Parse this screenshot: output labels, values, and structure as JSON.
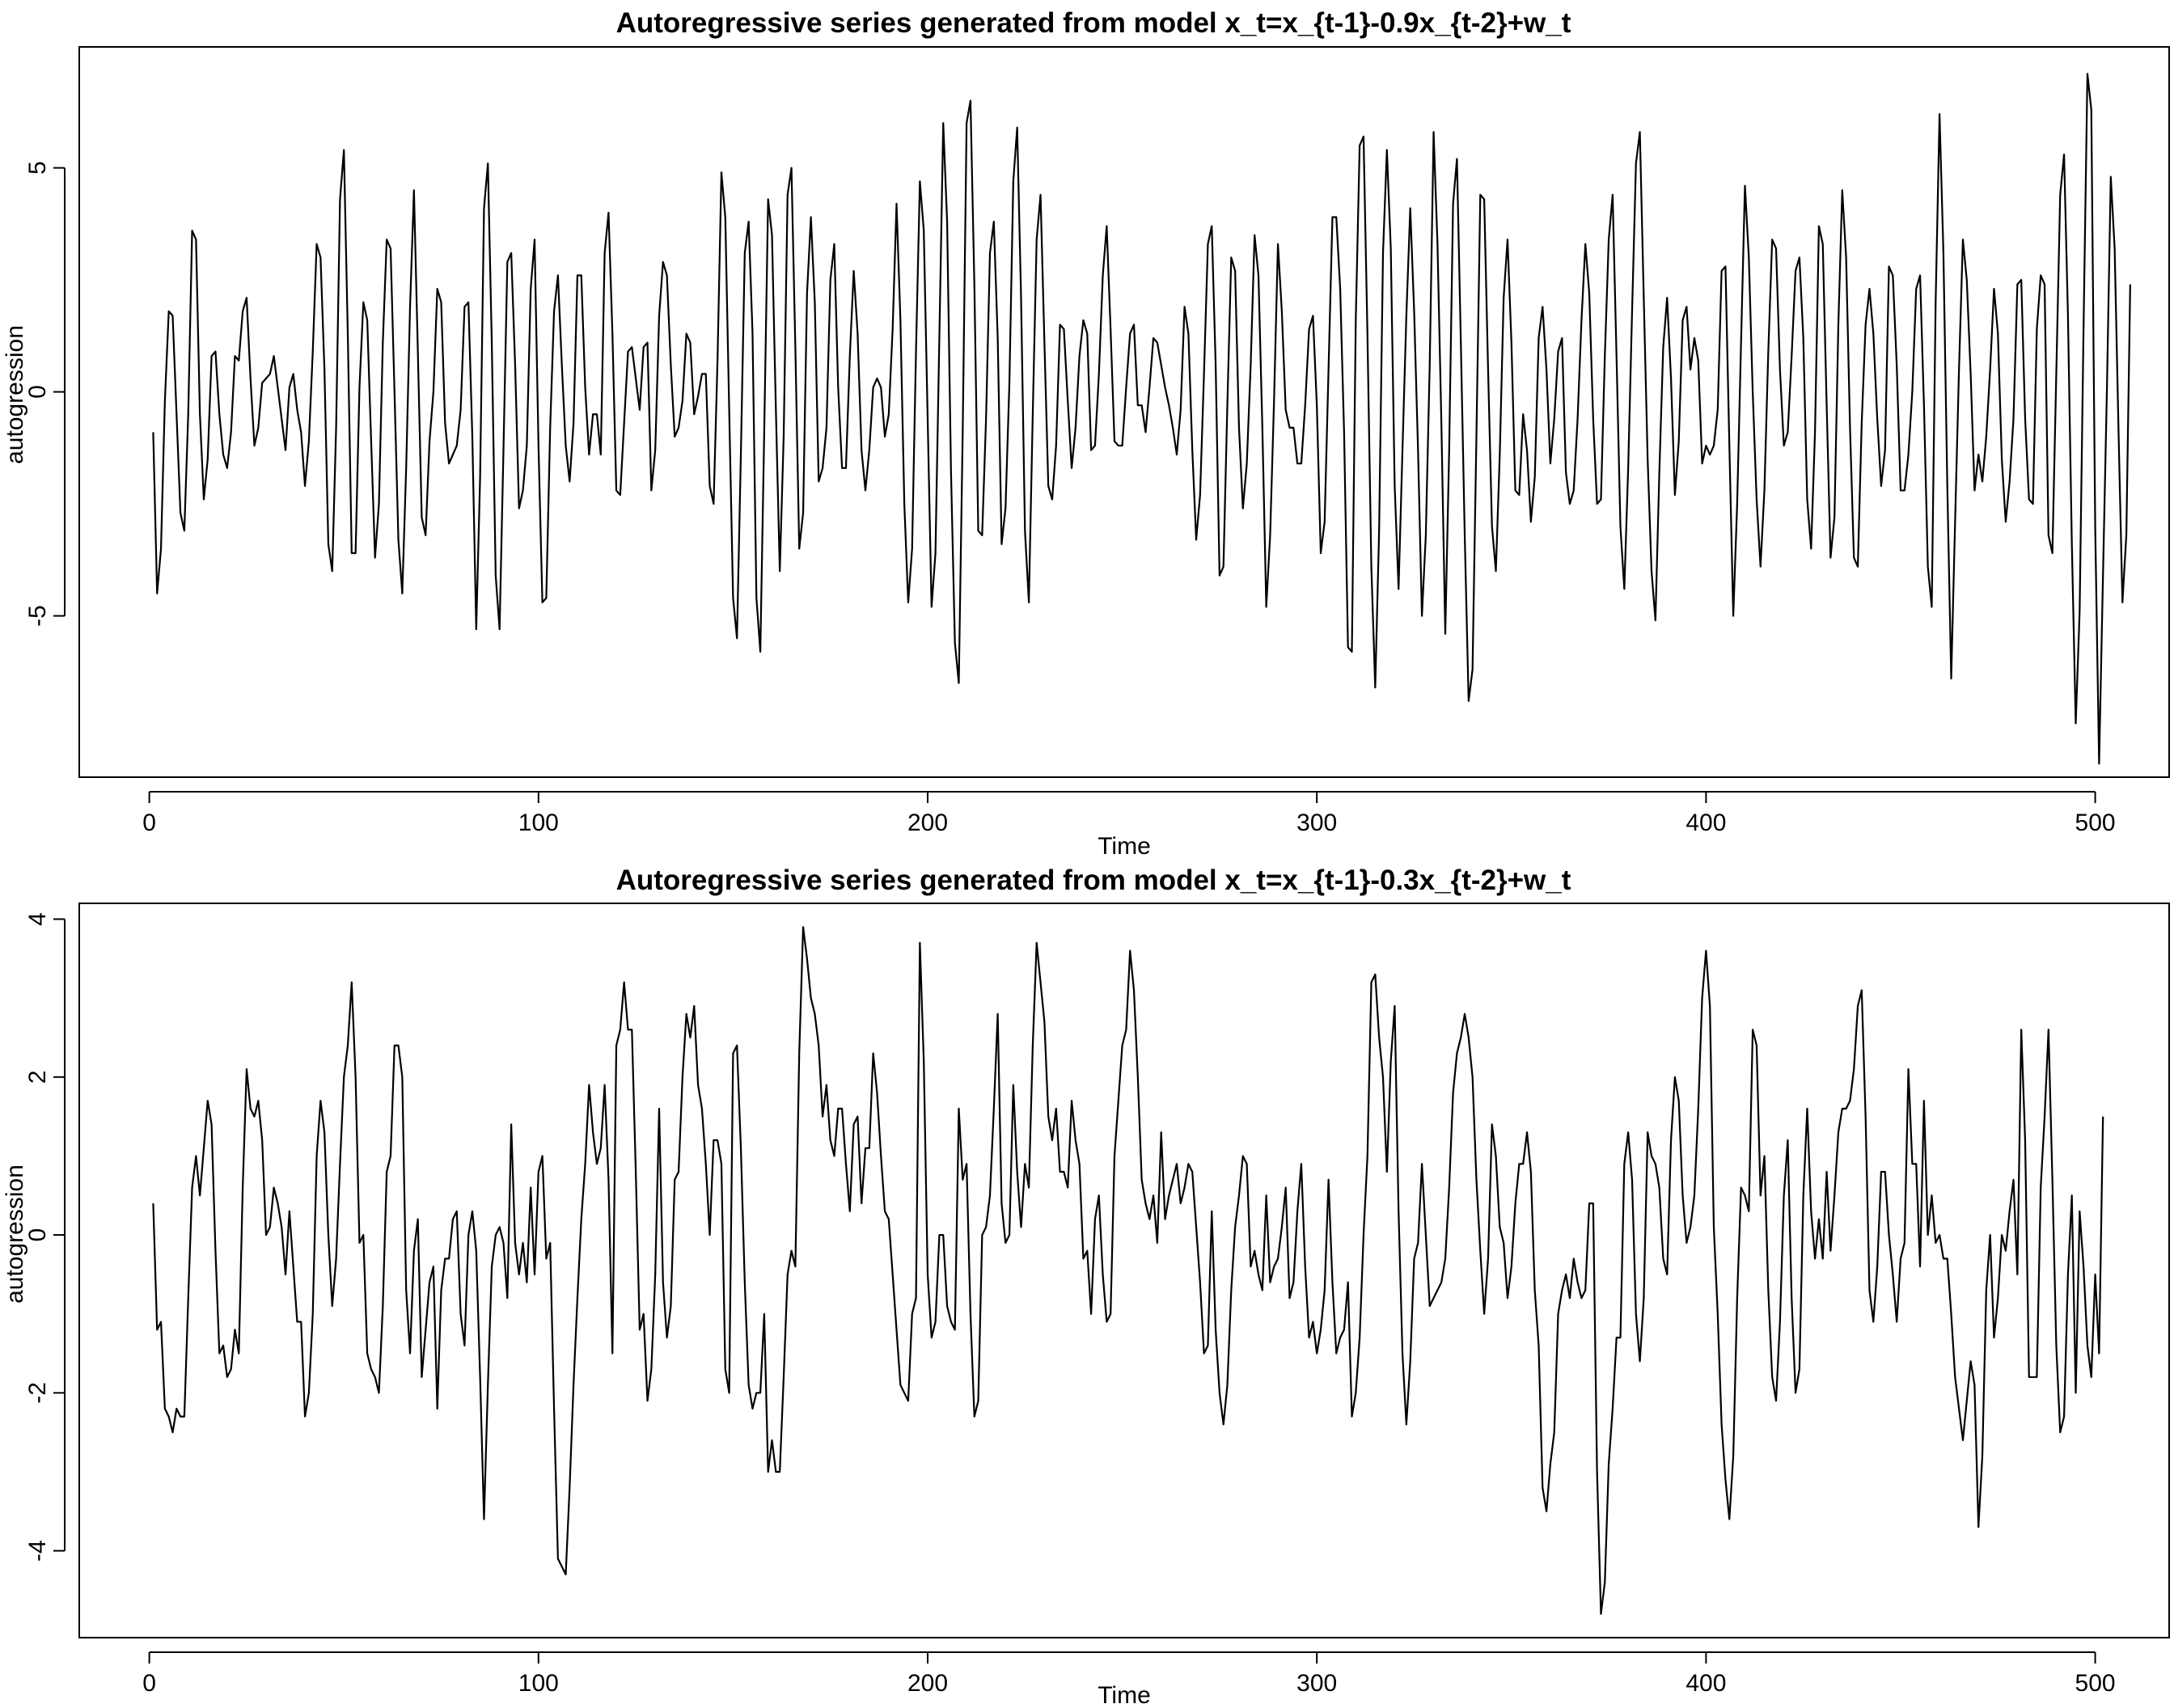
{
  "chart_data": [
    {
      "type": "line",
      "title": "Autoregressive series generated from model x_t=x_{t-1}-0.9x_{t-2}+w_t",
      "xlabel": "Time",
      "ylabel": "autogression",
      "xlim": [
        -18,
        519
      ],
      "ylim": [
        -8.6,
        7.7
      ],
      "xticks": [
        0,
        100,
        200,
        300,
        400,
        500
      ],
      "yticks": [
        -5,
        0,
        5
      ],
      "xtick_labels": [
        "0",
        "100",
        "200",
        "300",
        "400",
        "500"
      ],
      "ytick_labels": [
        "-5",
        "0",
        "5"
      ],
      "grid": false,
      "x_start": 1,
      "values": [
        -0.9,
        -4.5,
        -3.5,
        -0.2,
        1.8,
        1.7,
        -0.5,
        -2.7,
        -3.1,
        -0.5,
        3.6,
        3.4,
        -0.5,
        -2.4,
        -1.5,
        0.8,
        0.9,
        -0.5,
        -1.4,
        -1.7,
        -0.9,
        0.8,
        0.7,
        1.8,
        2.1,
        0.3,
        -1.2,
        -0.8,
        0.2,
        0.3,
        0.4,
        0.8,
        0.1,
        -0.6,
        -1.3,
        0.1,
        0.4,
        -0.4,
        -0.9,
        -2.1,
        -1.1,
        0.9,
        3.3,
        3.0,
        0.5,
        -3.4,
        -4.0,
        -0.8,
        4.3,
        5.4,
        1.3,
        -3.6,
        -3.6,
        0.1,
        2.0,
        1.6,
        -1.1,
        -3.7,
        -2.5,
        1.1,
        3.4,
        3.2,
        0.0,
        -3.3,
        -4.5,
        -1.7,
        1.9,
        4.5,
        0.9,
        -2.8,
        -3.2,
        -1.1,
        0.0,
        2.3,
        2.0,
        -0.7,
        -1.6,
        -1.4,
        -1.2,
        -0.4,
        1.9,
        2.0,
        -1.0,
        -5.3,
        -1.9,
        4.1,
        5.1,
        1.1,
        -4.1,
        -5.3,
        -1.3,
        2.9,
        3.1,
        0.6,
        -2.6,
        -2.2,
        -1.2,
        2.3,
        3.4,
        -1.2,
        -4.7,
        -4.6,
        -0.8,
        1.8,
        2.6,
        0.6,
        -1.2,
        -2.0,
        -0.7,
        2.6,
        2.6,
        0.1,
        -1.4,
        -0.5,
        -0.5,
        -1.4,
        3.1,
        4.0,
        1.3,
        -2.2,
        -2.3,
        -0.7,
        0.9,
        1.0,
        0.3,
        -0.4,
        1.0,
        1.1,
        -2.2,
        -1.3,
        1.7,
        2.9,
        2.6,
        0.6,
        -1.0,
        -0.8,
        -0.2,
        1.3,
        1.1,
        -0.5,
        -0.1,
        0.4,
        0.4,
        -2.1,
        -2.5,
        0.7,
        4.9,
        3.9,
        -0.4,
        -4.6,
        -5.5,
        -1.4,
        3.1,
        3.8,
        1.3,
        -4.6,
        -5.8,
        -0.9,
        4.3,
        3.5,
        -0.4,
        -4.0,
        -1.0,
        4.4,
        5.0,
        1.0,
        -3.5,
        -2.7,
        2.2,
        3.9,
        2.0,
        -2.0,
        -1.7,
        -0.8,
        2.5,
        3.3,
        0.1,
        -1.7,
        -1.7,
        0.8,
        2.7,
        1.3,
        -1.3,
        -2.2,
        -1.3,
        0.1,
        0.3,
        0.1,
        -1.0,
        -0.5,
        1.4,
        4.2,
        1.6,
        -2.5,
        -4.7,
        -3.5,
        0.9,
        4.7,
        3.6,
        -0.6,
        -4.8,
        -3.6,
        1.2,
        6.0,
        3.8,
        -1.8,
        -5.6,
        -6.5,
        -0.9,
        6.0,
        6.5,
        2.4,
        -3.1,
        -3.2,
        -0.6,
        3.1,
        3.8,
        1.2,
        -3.4,
        -2.6,
        0.2,
        4.7,
        5.9,
        2.1,
        -3.1,
        -4.7,
        -0.5,
        3.4,
        4.4,
        1.1,
        -2.1,
        -2.4,
        -1.2,
        1.5,
        1.4,
        -0.2,
        -1.7,
        -0.8,
        0.8,
        1.6,
        1.3,
        -1.3,
        -1.2,
        0.4,
        2.6,
        3.7,
        1.4,
        -1.1,
        -1.2,
        -1.2,
        0.1,
        1.3,
        1.5,
        -0.3,
        -0.3,
        -0.9,
        0.1,
        1.2,
        1.1,
        0.6,
        0.1,
        -0.3,
        -0.8,
        -1.4,
        -0.4,
        1.9,
        1.3,
        -1.3,
        -3.3,
        -2.3,
        0.4,
        3.3,
        3.7,
        0.6,
        -4.1,
        -3.9,
        -0.3,
        3.0,
        2.7,
        -0.8,
        -2.6,
        -1.6,
        0.6,
        3.5,
        2.6,
        -0.8,
        -4.8,
        -3.2,
        -0.2,
        3.3,
        1.8,
        -0.4,
        -0.8,
        -0.8,
        -1.6,
        -1.6,
        -0.3,
        1.4,
        1.7,
        -0.3,
        -3.6,
        -2.9,
        0.5,
        3.9,
        3.9,
        2.3,
        -0.9,
        -5.7,
        -5.8,
        1.6,
        5.5,
        5.7,
        1.3,
        -3.9,
        -6.6,
        -3.1,
        3.1,
        5.4,
        3.2,
        -2.1,
        -4.4,
        -1.3,
        1.7,
        4.1,
        1.8,
        -1.3,
        -5.0,
        -3.2,
        0.6,
        5.8,
        3.3,
        -0.7,
        -5.4,
        -1.3,
        4.2,
        5.2,
        1.1,
        -3.2,
        -6.9,
        -6.2,
        -1.0,
        4.4,
        4.3,
        0.5,
        -3.0,
        -4.0,
        -1.4,
        2.1,
        3.4,
        1.1,
        -2.2,
        -2.3,
        -0.5,
        -1.3,
        -2.9,
        -1.9,
        1.2,
        1.9,
        0.5,
        -1.6,
        -0.6,
        0.9,
        1.2,
        -1.8,
        -2.5,
        -2.2,
        -0.6,
        1.6,
        3.3,
        2.2,
        -0.6,
        -2.5,
        -2.4,
        0.8,
        3.4,
        4.4,
        0.8,
        -3.0,
        -4.4,
        -1.7,
        1.8,
        5.1,
        5.8,
        2.1,
        -1.5,
        -4.0,
        -5.1,
        -1.8,
        1.0,
        2.1,
        0.3,
        -2.3,
        -1.1,
        1.6,
        1.9,
        0.5,
        1.2,
        0.7,
        -1.6,
        -1.2,
        -1.4,
        -1.2,
        -0.4,
        2.7,
        2.8,
        -1.2,
        -5.0,
        -2.5,
        1.1,
        4.6,
        3.0,
        0.0,
        -2.4,
        -3.9,
        -2.2,
        0.9,
        3.4,
        3.2,
        0.5,
        -1.2,
        -0.9,
        0.8,
        2.7,
        3.0,
        1.2,
        -2.4,
        -3.5,
        -0.9,
        3.7,
        3.3,
        -0.3,
        -3.7,
        -2.8,
        1.5,
        4.5,
        3.0,
        -0.8,
        -3.7,
        -3.9,
        -0.7,
        1.5,
        2.3,
        1.3,
        -0.6,
        -2.1,
        -1.3,
        2.8,
        2.6,
        0.6,
        -2.2,
        -2.2,
        -1.4,
        0.0,
        2.3,
        2.6,
        -0.3,
        -3.9,
        -4.8,
        2.0,
        6.2,
        3.1,
        -2.1,
        -6.4,
        -2.9,
        0.5,
        3.4,
        2.5,
        0.4,
        -2.2,
        -1.4,
        -2.0,
        -1.0,
        0.5,
        2.3,
        1.3,
        -1.5,
        -2.9,
        -2.0,
        -0.6,
        2.4,
        2.5,
        -0.6,
        -2.4,
        -2.5,
        1.4,
        2.6,
        2.4,
        -3.2,
        -3.6,
        0.4,
        4.4,
        5.3,
        1.7,
        -3.4,
        -7.4,
        -4.9,
        1.4,
        7.1,
        6.3,
        -3.0,
        -8.3,
        -4.1,
        0.0,
        4.8,
        3.2,
        -0.9,
        -4.7,
        -3.2,
        2.4
      ]
    },
    {
      "type": "line",
      "title": "Autoregressive series generated from model x_t=x_{t-1}-0.3x_{t-2}+w_t",
      "xlabel": "Time",
      "ylabel": "autogression",
      "xlim": [
        -18,
        519
      ],
      "ylim": [
        -5.1,
        4.2
      ],
      "xticks": [
        0,
        100,
        200,
        300,
        400,
        500
      ],
      "yticks": [
        -4,
        -2,
        0,
        2,
        4
      ],
      "xtick_labels": [
        "0",
        "100",
        "200",
        "300",
        "400",
        "500"
      ],
      "ytick_labels": [
        "-4",
        "-2",
        "0",
        "2",
        "4"
      ],
      "grid": false,
      "x_start": 1,
      "values": [
        0.4,
        -1.2,
        -1.1,
        -2.2,
        -2.3,
        -2.5,
        -2.2,
        -2.3,
        -2.3,
        -0.8,
        0.6,
        1.0,
        0.5,
        1.1,
        1.7,
        1.4,
        -0.2,
        -1.5,
        -1.4,
        -1.8,
        -1.7,
        -1.2,
        -1.5,
        0.6,
        2.1,
        1.6,
        1.5,
        1.7,
        1.2,
        0.0,
        0.1,
        0.6,
        0.4,
        0.1,
        -0.5,
        0.3,
        -0.4,
        -1.1,
        -1.1,
        -2.3,
        -2.0,
        -1.0,
        1.0,
        1.7,
        1.3,
        0.0,
        -0.9,
        -0.3,
        0.9,
        2.0,
        2.4,
        3.2,
        2.0,
        -0.1,
        0.0,
        -1.5,
        -1.7,
        -1.8,
        -2.0,
        -0.9,
        0.8,
        1.0,
        2.4,
        2.4,
        2.0,
        -0.7,
        -1.5,
        -0.2,
        0.2,
        -1.8,
        -1.2,
        -0.6,
        -0.4,
        -2.2,
        -0.7,
        -0.3,
        -0.3,
        0.2,
        0.3,
        -1.0,
        -1.4,
        0.0,
        0.3,
        -0.2,
        -1.8,
        -3.6,
        -1.9,
        -0.4,
        0.0,
        0.1,
        -0.1,
        -0.8,
        1.4,
        -0.1,
        -0.5,
        -0.1,
        -0.6,
        0.6,
        -0.5,
        0.8,
        1.0,
        -0.3,
        -0.1,
        -2.2,
        -4.1,
        -4.2,
        -4.3,
        -3.2,
        -1.9,
        -0.8,
        0.2,
        0.9,
        1.9,
        1.3,
        0.9,
        1.1,
        1.9,
        0.7,
        -1.5,
        2.4,
        2.6,
        3.2,
        2.6,
        2.6,
        0.8,
        -1.2,
        -1.0,
        -2.1,
        -1.7,
        -0.5,
        1.6,
        -0.6,
        -1.3,
        -0.9,
        0.7,
        0.8,
        2.0,
        2.8,
        2.5,
        2.9,
        1.9,
        1.6,
        0.9,
        0.0,
        1.2,
        1.2,
        0.9,
        -1.7,
        -2.0,
        2.3,
        2.4,
        1.1,
        -0.6,
        -1.9,
        -2.2,
        -2.0,
        -2.0,
        -1.0,
        -3.0,
        -2.6,
        -3.0,
        -3.0,
        -1.8,
        -0.5,
        -0.2,
        -0.4,
        2.3,
        3.9,
        3.5,
        3.0,
        2.8,
        2.4,
        1.5,
        1.9,
        1.2,
        1.0,
        1.6,
        1.6,
        0.9,
        0.3,
        1.4,
        1.5,
        0.4,
        1.1,
        1.1,
        2.3,
        1.8,
        1.0,
        0.3,
        0.2,
        -0.5,
        -1.2,
        -1.9,
        -2.0,
        -2.1,
        -1.0,
        -0.8,
        3.7,
        2.2,
        -0.5,
        -1.3,
        -1.1,
        -0.0,
        -0.0,
        -0.9,
        -1.1,
        -1.2,
        1.6,
        0.7,
        0.9,
        -1.0,
        -2.3,
        -2.1,
        0.0,
        0.1,
        0.5,
        1.6,
        2.8,
        0.4,
        -0.1,
        0.0,
        1.9,
        0.8,
        0.1,
        0.9,
        0.6,
        2.4,
        3.7,
        3.2,
        2.7,
        1.5,
        1.2,
        1.6,
        0.8,
        0.8,
        0.6,
        1.7,
        1.2,
        0.9,
        -0.3,
        -0.2,
        -1.0,
        0.2,
        0.5,
        -0.5,
        -1.1,
        -1.0,
        1.0,
        1.7,
        2.4,
        2.6,
        3.6,
        3.1,
        2.0,
        0.7,
        0.4,
        0.2,
        0.5,
        -0.1,
        1.3,
        0.2,
        0.5,
        0.7,
        0.9,
        0.4,
        0.6,
        0.9,
        0.8,
        0.1,
        -0.6,
        -1.5,
        -1.4,
        0.3,
        -1.2,
        -2.0,
        -2.4,
        -1.9,
        -0.7,
        0.1,
        0.5,
        1.0,
        0.9,
        -0.4,
        -0.2,
        -0.5,
        -0.7,
        0.5,
        -0.6,
        -0.4,
        -0.3,
        0.1,
        0.6,
        -0.8,
        -0.6,
        0.3,
        0.9,
        -0.4,
        -1.3,
        -1.1,
        -1.5,
        -1.2,
        -0.7,
        0.7,
        -0.6,
        -1.5,
        -1.3,
        -1.2,
        -0.6,
        -2.3,
        -2.0,
        -1.3,
        0.0,
        1.0,
        3.2,
        3.3,
        2.5,
        2.0,
        0.8,
        2.2,
        2.9,
        0.3,
        -1.5,
        -2.4,
        -1.6,
        -0.3,
        -0.1,
        0.9,
        0.0,
        -0.9,
        -0.8,
        -0.7,
        -0.6,
        -0.3,
        0.6,
        1.8,
        2.3,
        2.5,
        2.8,
        2.5,
        2.0,
        0.7,
        -0.2,
        -1.0,
        -0.3,
        1.4,
        1.0,
        0.1,
        -0.1,
        -0.8,
        -0.4,
        0.4,
        0.9,
        0.9,
        1.3,
        0.8,
        -0.7,
        -1.4,
        -3.2,
        -3.5,
        -2.9,
        -2.5,
        -1.0,
        -0.7,
        -0.5,
        -0.8,
        -0.3,
        -0.6,
        -0.8,
        -0.7,
        0.4,
        0.4,
        -3.0,
        -4.8,
        -4.4,
        -2.9,
        -2.2,
        -1.3,
        -1.3,
        0.9,
        1.3,
        0.7,
        -1.0,
        -1.6,
        -0.8,
        1.3,
        1.0,
        0.9,
        0.6,
        -0.3,
        -0.5,
        1.2,
        2.0,
        1.7,
        0.5,
        -0.1,
        0.1,
        0.5,
        1.6,
        3.0,
        3.6,
        2.9,
        0.1,
        -1.0,
        -2.4,
        -3.1,
        -3.6,
        -2.8,
        -0.8,
        0.6,
        0.5,
        0.3,
        2.6,
        2.4,
        0.5,
        1.0,
        -0.7,
        -1.8,
        -2.1,
        -1.1,
        0.5,
        1.2,
        -0.8,
        -2.0,
        -1.7,
        0.5,
        1.6,
        0.3,
        -0.3,
        0.2,
        -0.3,
        0.8,
        -0.2,
        0.5,
        1.3,
        1.6,
        1.6,
        1.7,
        2.1,
        2.9,
        3.1,
        1.5,
        -0.7,
        -1.1,
        -0.4,
        0.8,
        0.8,
        0.0,
        -0.5,
        -1.1,
        -0.3,
        -0.1,
        2.1,
        0.9,
        0.9,
        -0.4,
        1.7,
        0.0,
        0.5,
        -0.1,
        0.0,
        -0.3,
        -0.3,
        -1.0,
        -1.8,
        -2.2,
        -2.6,
        -2.1,
        -1.6,
        -1.9,
        -3.7,
        -2.8,
        -0.7,
        0.0,
        -1.3,
        -0.8,
        0.0,
        -0.2,
        0.3,
        0.7,
        -0.5,
        2.6,
        1.2,
        -1.8,
        -1.8,
        -1.8,
        0.6,
        1.5,
        2.6,
        0.7,
        -1.4,
        -2.5,
        -2.3,
        -0.5,
        0.5,
        -2.0,
        0.3,
        -0.4,
        -1.4,
        -1.8,
        -0.5,
        -1.5,
        1.5
      ]
    }
  ]
}
